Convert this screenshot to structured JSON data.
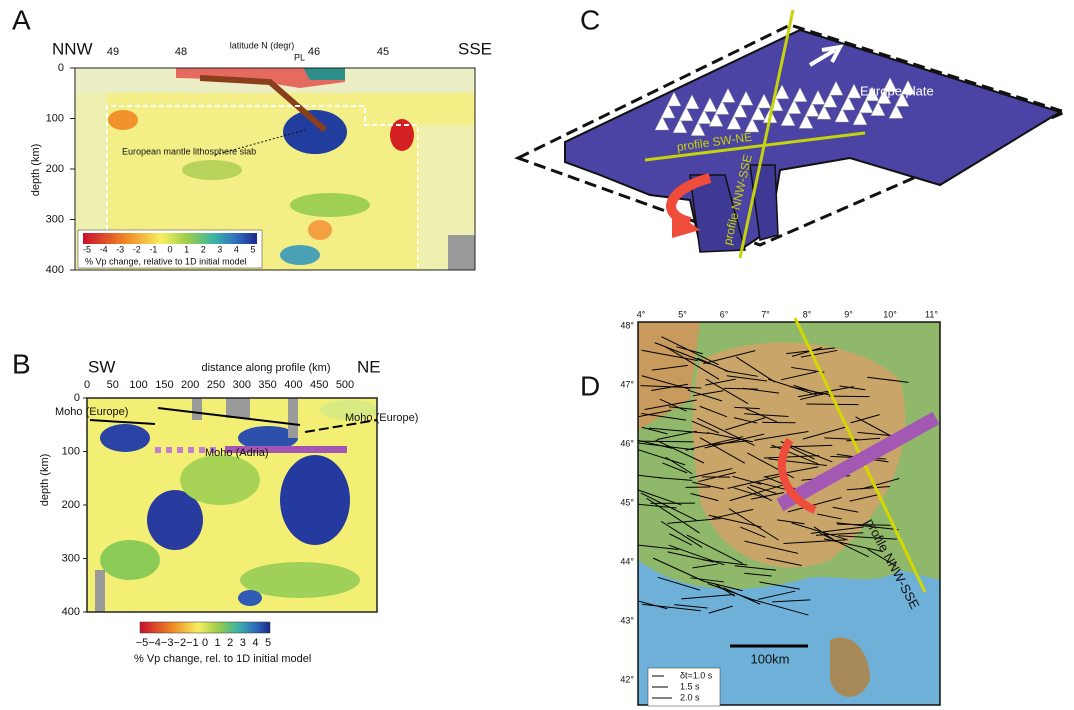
{
  "panels": {
    "a": {
      "label": "A",
      "left_end": "NNW",
      "right_end": "SSE",
      "top_ticks": [
        "49",
        "48",
        "46",
        "45"
      ],
      "top_axis_label": "latitude N (degr)",
      "pl_label": "PL",
      "depth_ticks": [
        "0",
        "100",
        "200",
        "300",
        "400"
      ],
      "depth_label": "depth (km)",
      "slab_label": "European mantle lithosphere slab",
      "colorbar_ticks": [
        "-5",
        "-4",
        "-3",
        "-2",
        "-1",
        "0",
        "1",
        "2",
        "3",
        "4",
        "5"
      ],
      "colorbar_label": "% Vp change, relative to 1D initial model"
    },
    "b": {
      "label": "B",
      "left_end": "SW",
      "right_end": "NE",
      "top_axis_label": "distance along profile (km)",
      "distance_ticks": [
        "0",
        "50",
        "100",
        "150",
        "200",
        "250",
        "300",
        "350",
        "400",
        "450",
        "500"
      ],
      "depth_ticks": [
        "0",
        "100",
        "200",
        "300",
        "400"
      ],
      "depth_label": "depth (km)",
      "moho_europe_left": "Moho (Europe)",
      "moho_adria": "Moho (Adria)",
      "moho_europe_right": "Moho (Europe)",
      "colorbar_ticks": [
        "−5",
        "−4",
        "−3",
        "−2",
        "−1",
        "0",
        "1",
        "2",
        "3",
        "4",
        "5"
      ],
      "colorbar_label": "% Vp change, rel. to 1D initial model"
    },
    "c": {
      "label": "C",
      "plate_label": "Europe plate",
      "profile_sw_ne": "profile SW-NE",
      "profile_nnw_sse": "profile NNW-SSE"
    },
    "d": {
      "label": "D",
      "lon_ticks": [
        "4°",
        "5°",
        "6°",
        "7°",
        "8°",
        "9°",
        "10°",
        "11°"
      ],
      "lat_ticks": [
        "48°",
        "47°",
        "46°",
        "45°",
        "44°",
        "43°",
        "42°"
      ],
      "scale_label": "100km",
      "profile_label": "profile NNW-SSE",
      "legend": [
        "δt=1.0 s",
        "1.5 s",
        "2.0 s"
      ]
    }
  }
}
